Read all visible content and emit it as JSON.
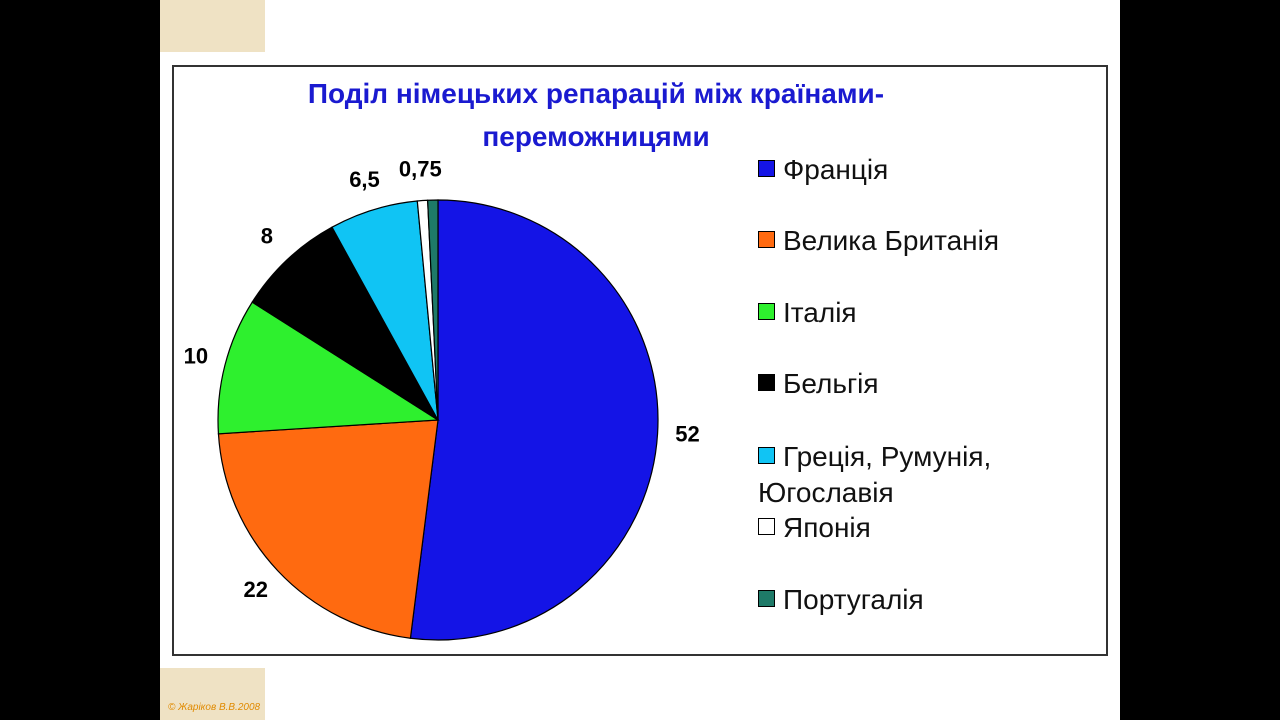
{
  "chart_data": {
    "type": "pie",
    "title": [
      "Поділ німецьких репарацій між країнами-",
      "переможницями"
    ],
    "categories": [
      "Франція",
      "Велика Британія",
      "Італія",
      "Бельгія",
      "Греція, Румунія, Югославія",
      "Японія",
      "Португалія"
    ],
    "values": [
      52,
      22,
      10,
      8,
      6.5,
      0.75,
      0.75
    ],
    "value_labels": [
      "52",
      "22",
      "10",
      "8",
      "6,5",
      "0,75",
      null
    ],
    "colors": [
      "#1414e6",
      "#ff6a10",
      "#2ef02e",
      "#000000",
      "#10c4f4",
      "#ffffff",
      "#1e7a68"
    ]
  },
  "footer": "© Жаріков В.В.2008"
}
